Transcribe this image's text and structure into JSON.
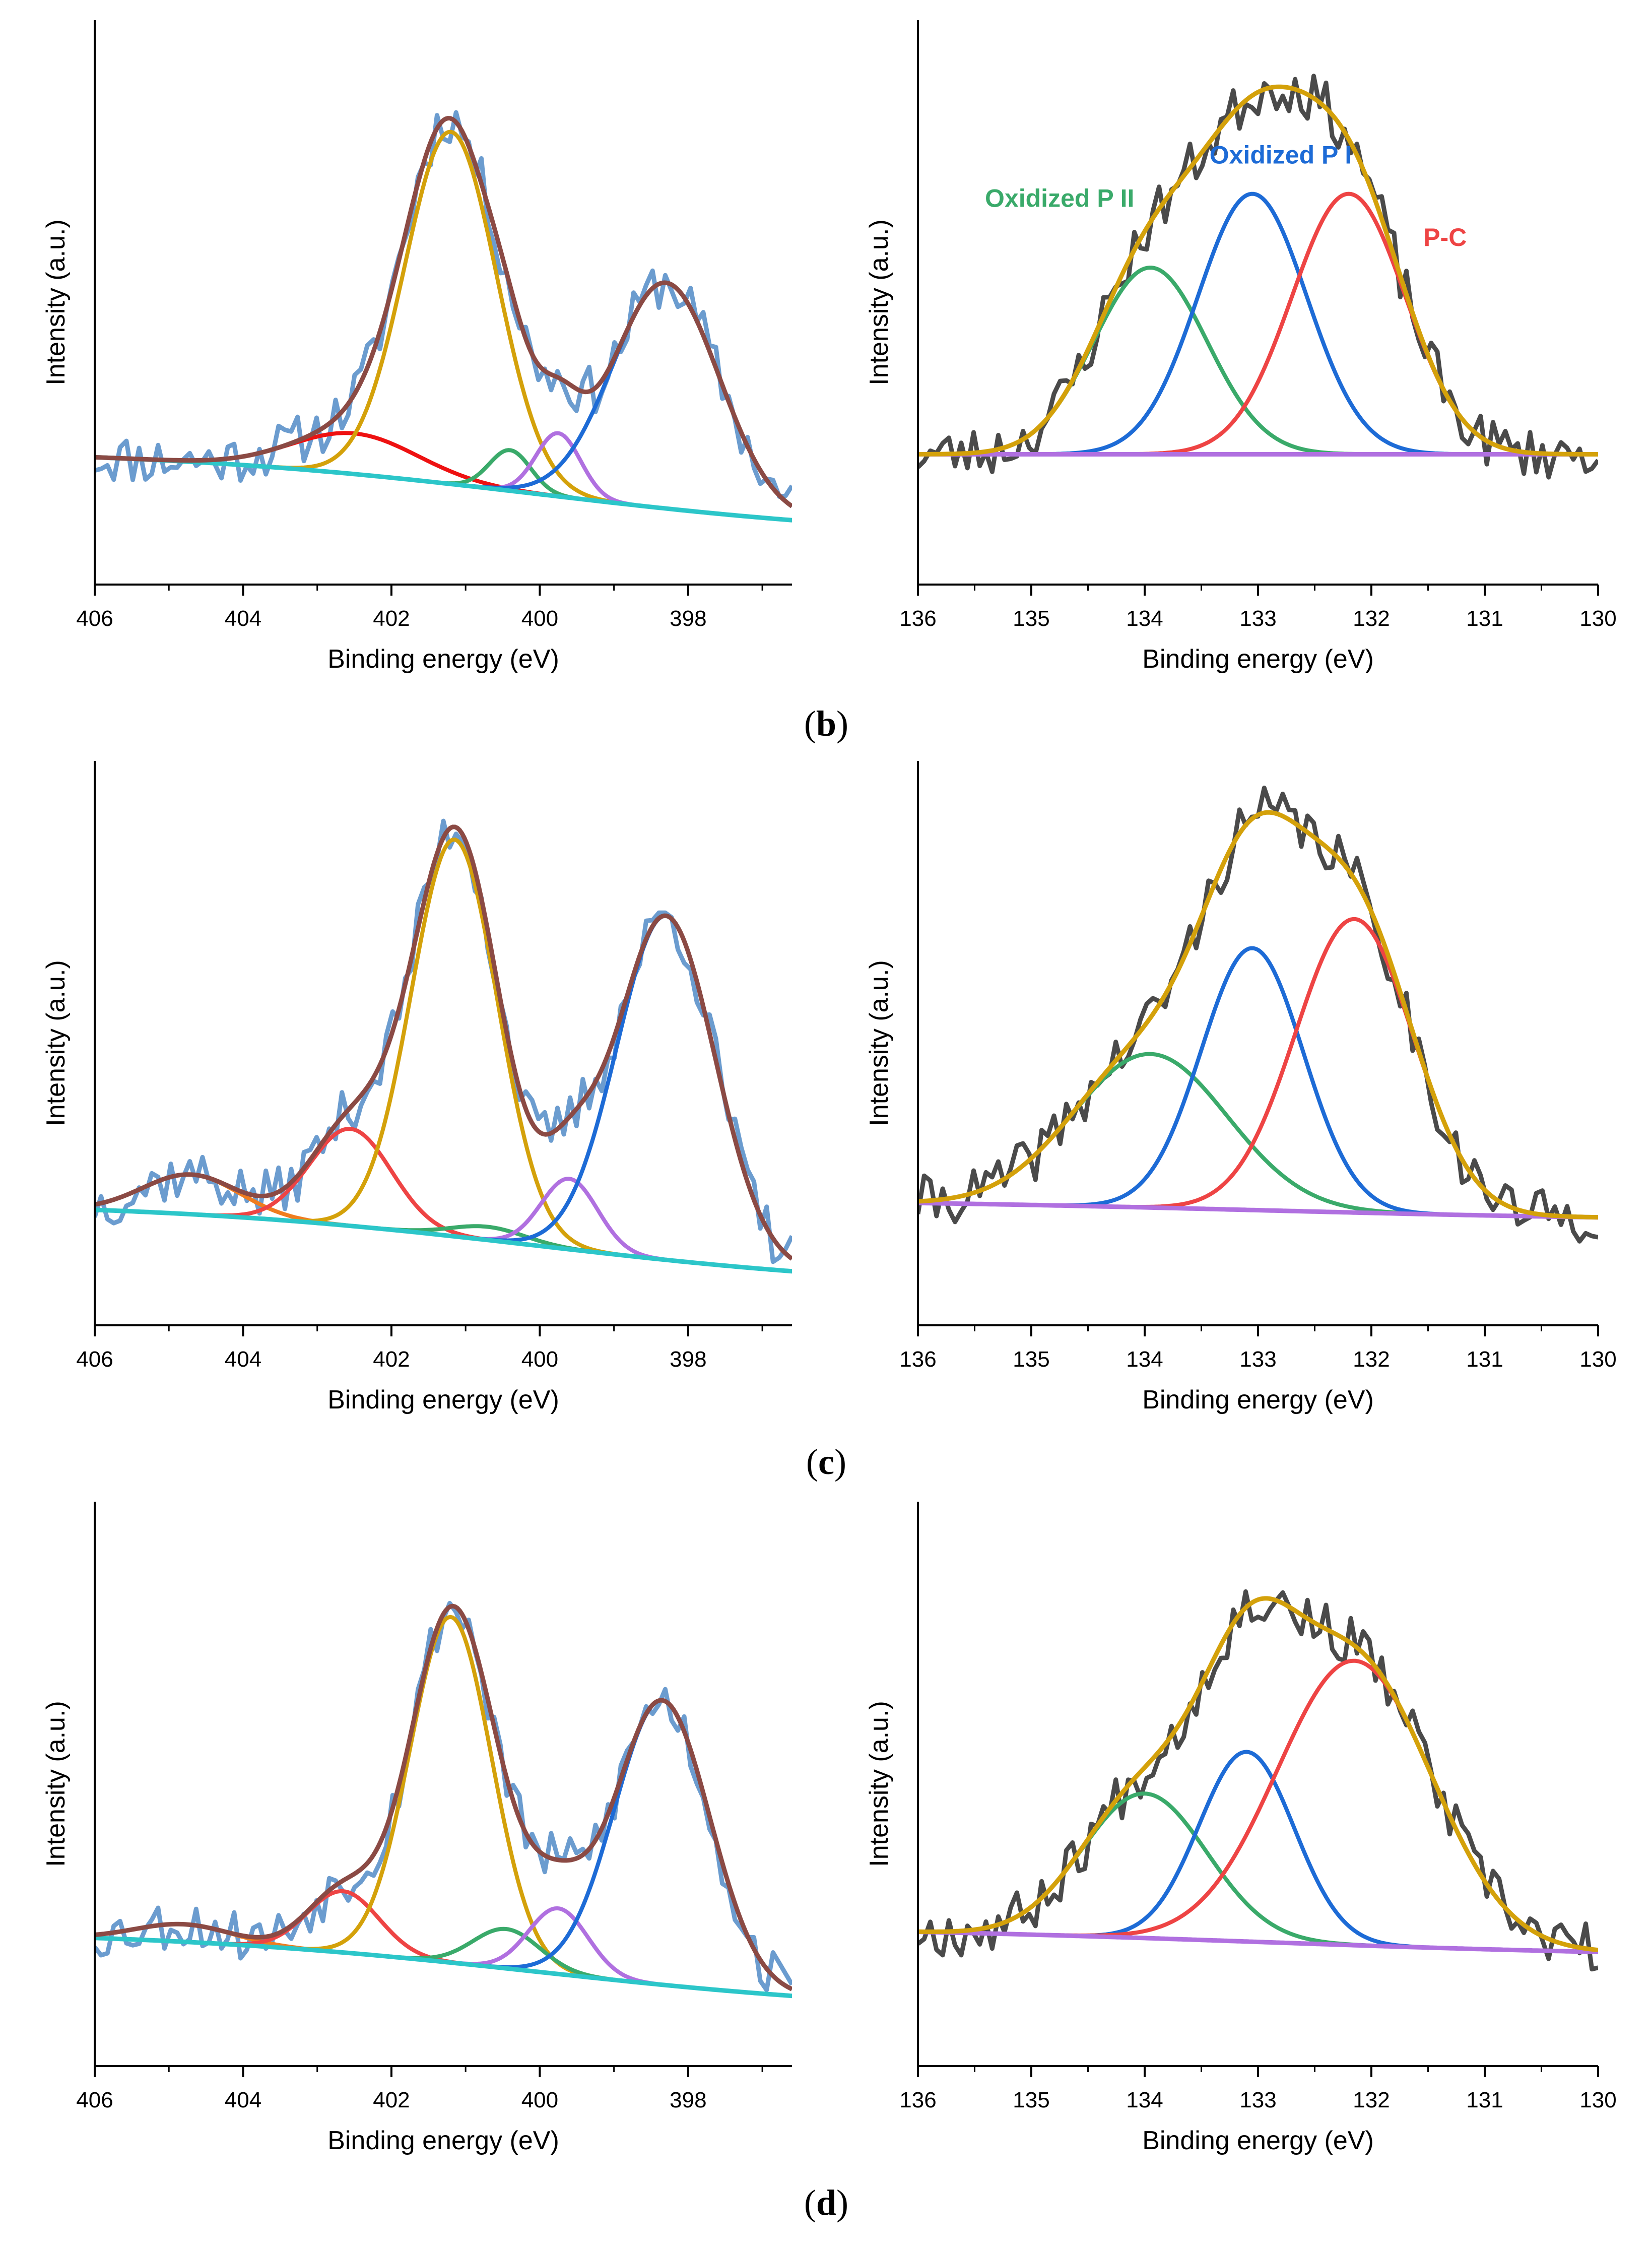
{
  "chart_data": [
    {
      "id": "b-left",
      "type": "line",
      "x_axis_reversed": true,
      "xlabel": "Binding energy (eV)",
      "ylabel": "Intensity (a.u.)",
      "xlim": [
        406,
        396.6
      ],
      "ylim": [
        -0.1,
        1.15
      ],
      "xticks": [
        "406",
        "404",
        "402",
        "400",
        "398"
      ],
      "xtick_values": [
        406,
        404,
        402,
        400,
        398
      ],
      "grid": false,
      "noise_seed": 11,
      "background": {
        "left": 0.2,
        "right": 0.0,
        "center": 400.0,
        "width": 2.6
      },
      "peaks": [
        {
          "name": "red",
          "color": "#ee1111",
          "center": 402.5,
          "height": 0.09,
          "sigma": 0.85
        },
        {
          "name": "gold",
          "color": "#d4a10a",
          "center": 401.2,
          "height": 0.78,
          "sigma": 0.62
        },
        {
          "name": "green",
          "color": "#3aaa6a",
          "center": 400.4,
          "height": 0.09,
          "sigma": 0.28
        },
        {
          "name": "purple",
          "color": "#b070e0",
          "center": 399.75,
          "height": 0.14,
          "sigma": 0.3
        },
        {
          "name": "blue",
          "color": "#1d6bd6",
          "center": 398.3,
          "height": 0.5,
          "sigma": 0.72
        }
      ],
      "series": [
        {
          "name": "raw",
          "color": "#6b9ccf"
        },
        {
          "name": "envelope",
          "color": "#8b4a44"
        },
        {
          "name": "baseline",
          "color": "#2cc6c9"
        }
      ]
    },
    {
      "id": "b-right",
      "type": "line",
      "x_axis_reversed": true,
      "xlabel": "Binding energy (eV)",
      "ylabel": "Intensity (a.u.)",
      "xlim": [
        136,
        130
      ],
      "ylim": [
        -0.3,
        1.0
      ],
      "xticks": [
        "136",
        "135",
        "134",
        "133",
        "132",
        "131",
        "130"
      ],
      "xtick_values": [
        136,
        135,
        134,
        133,
        132,
        131,
        130
      ],
      "grid": false,
      "noise_seed": 23,
      "background": {
        "left": 0.0,
        "right": 0.0,
        "center": 133.0,
        "width": 1.5
      },
      "peaks": [
        {
          "name": "Oxidized P II",
          "color": "#3aaa6a",
          "center": 133.95,
          "height": 0.43,
          "sigma": 0.5
        },
        {
          "name": "Oxidized P I",
          "color": "#1d6bd6",
          "center": 133.05,
          "height": 0.6,
          "sigma": 0.48
        },
        {
          "name": "P-C",
          "color": "#ee4444",
          "center": 132.2,
          "height": 0.6,
          "sigma": 0.5
        }
      ],
      "series": [
        {
          "name": "raw",
          "color": "#4a4a4a"
        },
        {
          "name": "envelope",
          "color": "#d4a10a"
        },
        {
          "name": "baseline",
          "color": "#b070e0"
        }
      ],
      "annotations": [
        {
          "text": "Oxidized P II",
          "color": "#3aaa6a",
          "x": 134.75,
          "y": 0.57
        },
        {
          "text": "Oxidized P I",
          "color": "#1d6bd6",
          "x": 132.8,
          "y": 0.67
        },
        {
          "text": "P-C",
          "color": "#ee4444",
          "x": 131.35,
          "y": 0.48
        }
      ]
    },
    {
      "id": "c-left",
      "type": "line",
      "x_axis_reversed": true,
      "xlabel": "Binding energy (eV)",
      "ylabel": "Intensity (a.u.)",
      "xlim": [
        406,
        396.6
      ],
      "ylim": [
        -0.08,
        1.2
      ],
      "xticks": [
        "406",
        "404",
        "402",
        "400",
        "398"
      ],
      "xtick_values": [
        406,
        404,
        402,
        400,
        398
      ],
      "grid": false,
      "noise_seed": 37,
      "background": {
        "left": 0.2,
        "right": 0.0,
        "center": 400.0,
        "width": 2.6
      },
      "peaks": [
        {
          "name": "orange",
          "color": "#f07c1e",
          "center": 404.7,
          "height": 0.09,
          "sigma": 0.65
        },
        {
          "name": "red",
          "color": "#ee4444",
          "center": 402.55,
          "height": 0.22,
          "sigma": 0.55
        },
        {
          "name": "gold",
          "color": "#d4a10a",
          "center": 401.15,
          "height": 0.9,
          "sigma": 0.58
        },
        {
          "name": "green",
          "color": "#3aaa6a",
          "center": 400.7,
          "height": 0.03,
          "sigma": 0.5
        },
        {
          "name": "purple",
          "color": "#b070e0",
          "center": 399.6,
          "height": 0.16,
          "sigma": 0.38
        },
        {
          "name": "blue",
          "color": "#1d6bd6",
          "center": 398.3,
          "height": 0.78,
          "sigma": 0.66
        }
      ],
      "series": [
        {
          "name": "raw",
          "color": "#6b9ccf"
        },
        {
          "name": "envelope",
          "color": "#8b4a44"
        },
        {
          "name": "baseline",
          "color": "#2cc6c9"
        }
      ]
    },
    {
      "id": "c-right",
      "type": "line",
      "x_axis_reversed": true,
      "xlabel": "Binding energy (eV)",
      "ylabel": "Intensity (a.u.)",
      "xlim": [
        136,
        130
      ],
      "ylim": [
        -0.25,
        1.0
      ],
      "xticks": [
        "136",
        "135",
        "134",
        "133",
        "132",
        "131",
        "130"
      ],
      "xtick_values": [
        136,
        135,
        134,
        133,
        132,
        131,
        130
      ],
      "grid": false,
      "noise_seed": 41,
      "background": {
        "left": 0.03,
        "right": -0.02,
        "center": 133.0,
        "width": 2.0
      },
      "peaks": [
        {
          "name": "green",
          "color": "#3aaa6a",
          "center": 133.95,
          "height": 0.34,
          "sigma": 0.68
        },
        {
          "name": "blue",
          "color": "#1d6bd6",
          "center": 133.05,
          "height": 0.58,
          "sigma": 0.45
        },
        {
          "name": "red",
          "color": "#ee4444",
          "center": 132.15,
          "height": 0.65,
          "sigma": 0.52
        }
      ],
      "series": [
        {
          "name": "raw",
          "color": "#4a4a4a"
        },
        {
          "name": "envelope",
          "color": "#d4a10a"
        },
        {
          "name": "baseline",
          "color": "#b070e0"
        }
      ]
    },
    {
      "id": "d-left",
      "type": "line",
      "x_axis_reversed": true,
      "xlabel": "Binding energy (eV)",
      "ylabel": "Intensity (a.u.)",
      "xlim": [
        406,
        396.6
      ],
      "ylim": [
        -0.12,
        1.17
      ],
      "xticks": [
        "406",
        "404",
        "402",
        "400",
        "398"
      ],
      "xtick_values": [
        406,
        404,
        402,
        400,
        398
      ],
      "grid": false,
      "noise_seed": 53,
      "background": {
        "left": 0.19,
        "right": 0.0,
        "center": 400.0,
        "width": 2.6
      },
      "peaks": [
        {
          "name": "orange",
          "color": "#f07c1e",
          "center": 404.8,
          "height": 0.04,
          "sigma": 0.65
        },
        {
          "name": "red",
          "color": "#ee4444",
          "center": 402.65,
          "height": 0.14,
          "sigma": 0.48
        },
        {
          "name": "gold",
          "color": "#d4a10a",
          "center": 401.2,
          "height": 0.79,
          "sigma": 0.55
        },
        {
          "name": "green",
          "color": "#3aaa6a",
          "center": 400.45,
          "height": 0.09,
          "sigma": 0.45
        },
        {
          "name": "purple",
          "color": "#b070e0",
          "center": 399.75,
          "height": 0.15,
          "sigma": 0.4
        },
        {
          "name": "blue",
          "color": "#1d6bd6",
          "center": 398.35,
          "height": 0.65,
          "sigma": 0.64
        }
      ],
      "series": [
        {
          "name": "raw",
          "color": "#6b9ccf"
        },
        {
          "name": "envelope",
          "color": "#8b4a44"
        },
        {
          "name": "baseline",
          "color": "#2cc6c9"
        }
      ]
    },
    {
      "id": "d-right",
      "type": "line",
      "x_axis_reversed": true,
      "xlabel": "Binding energy (eV)",
      "ylabel": "Intensity (a.u.)",
      "xlim": [
        136,
        130
      ],
      "ylim": [
        -0.25,
        1.0
      ],
      "xticks": [
        "136",
        "135",
        "134",
        "133",
        "132",
        "131",
        "130"
      ],
      "xtick_values": [
        136,
        135,
        134,
        133,
        132,
        131,
        130
      ],
      "grid": false,
      "noise_seed": 67,
      "background": {
        "left": 0.06,
        "right": -0.01,
        "center": 133.0,
        "width": 2.0
      },
      "peaks": [
        {
          "name": "green",
          "color": "#3aaa6a",
          "center": 134.0,
          "height": 0.32,
          "sigma": 0.55
        },
        {
          "name": "blue",
          "color": "#1d6bd6",
          "center": 133.1,
          "height": 0.42,
          "sigma": 0.42
        },
        {
          "name": "red",
          "color": "#ee4444",
          "center": 132.15,
          "height": 0.63,
          "sigma": 0.68
        }
      ],
      "series": [
        {
          "name": "raw",
          "color": "#4a4a4a"
        },
        {
          "name": "envelope",
          "color": "#d4a10a"
        },
        {
          "name": "baseline",
          "color": "#b070e0"
        }
      ]
    }
  ],
  "labels": {
    "b": "b",
    "c": "c",
    "d": "d",
    "open": "(",
    "close": ")"
  }
}
